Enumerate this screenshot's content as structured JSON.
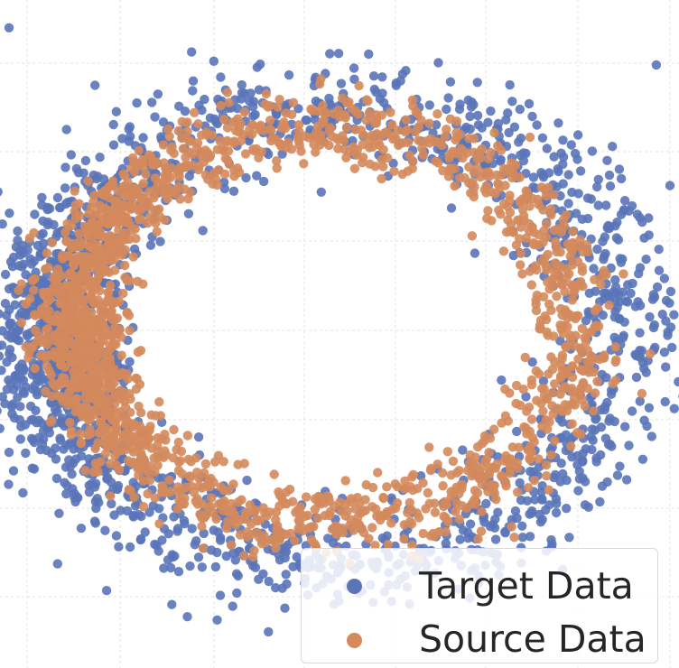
{
  "chart_data": {
    "type": "scatter",
    "title": "",
    "xlabel": "",
    "ylabel": "",
    "grid": true,
    "legend_position": "bottom-right",
    "series": [
      {
        "name": "Target Data",
        "color": "#5a74b8",
        "shape": "ring",
        "center": [
          0.0,
          0.0
        ],
        "radius": [
          3.2,
          2.45
        ],
        "spread": 0.55,
        "count": 1900,
        "dense_side": "left"
      },
      {
        "name": "Source Data",
        "color": "#d48a5c",
        "shape": "ring",
        "center": [
          -0.1,
          0.1
        ],
        "radius": [
          2.75,
          2.15
        ],
        "spread": 0.42,
        "count": 1900,
        "dense_side": "left"
      }
    ],
    "outliers": [
      {
        "series": "Target Data",
        "x": -3.6,
        "y": 3.3
      },
      {
        "series": "Target Data",
        "x": 3.55,
        "y": 2.9
      },
      {
        "series": "Target Data",
        "x": -3.55,
        "y": -0.6
      },
      {
        "series": "Target Data",
        "x": 3.7,
        "y": 1.6
      },
      {
        "series": "Target Data",
        "x": 3.4,
        "y": -1.35
      }
    ],
    "xlim": [
      -3.7,
      3.8
    ],
    "ylim": [
      -3.6,
      3.6
    ]
  },
  "legend": {
    "items": [
      {
        "label": "Target Data",
        "color": "#5a74b8"
      },
      {
        "label": "Source Data",
        "color": "#d48a5c"
      }
    ]
  }
}
